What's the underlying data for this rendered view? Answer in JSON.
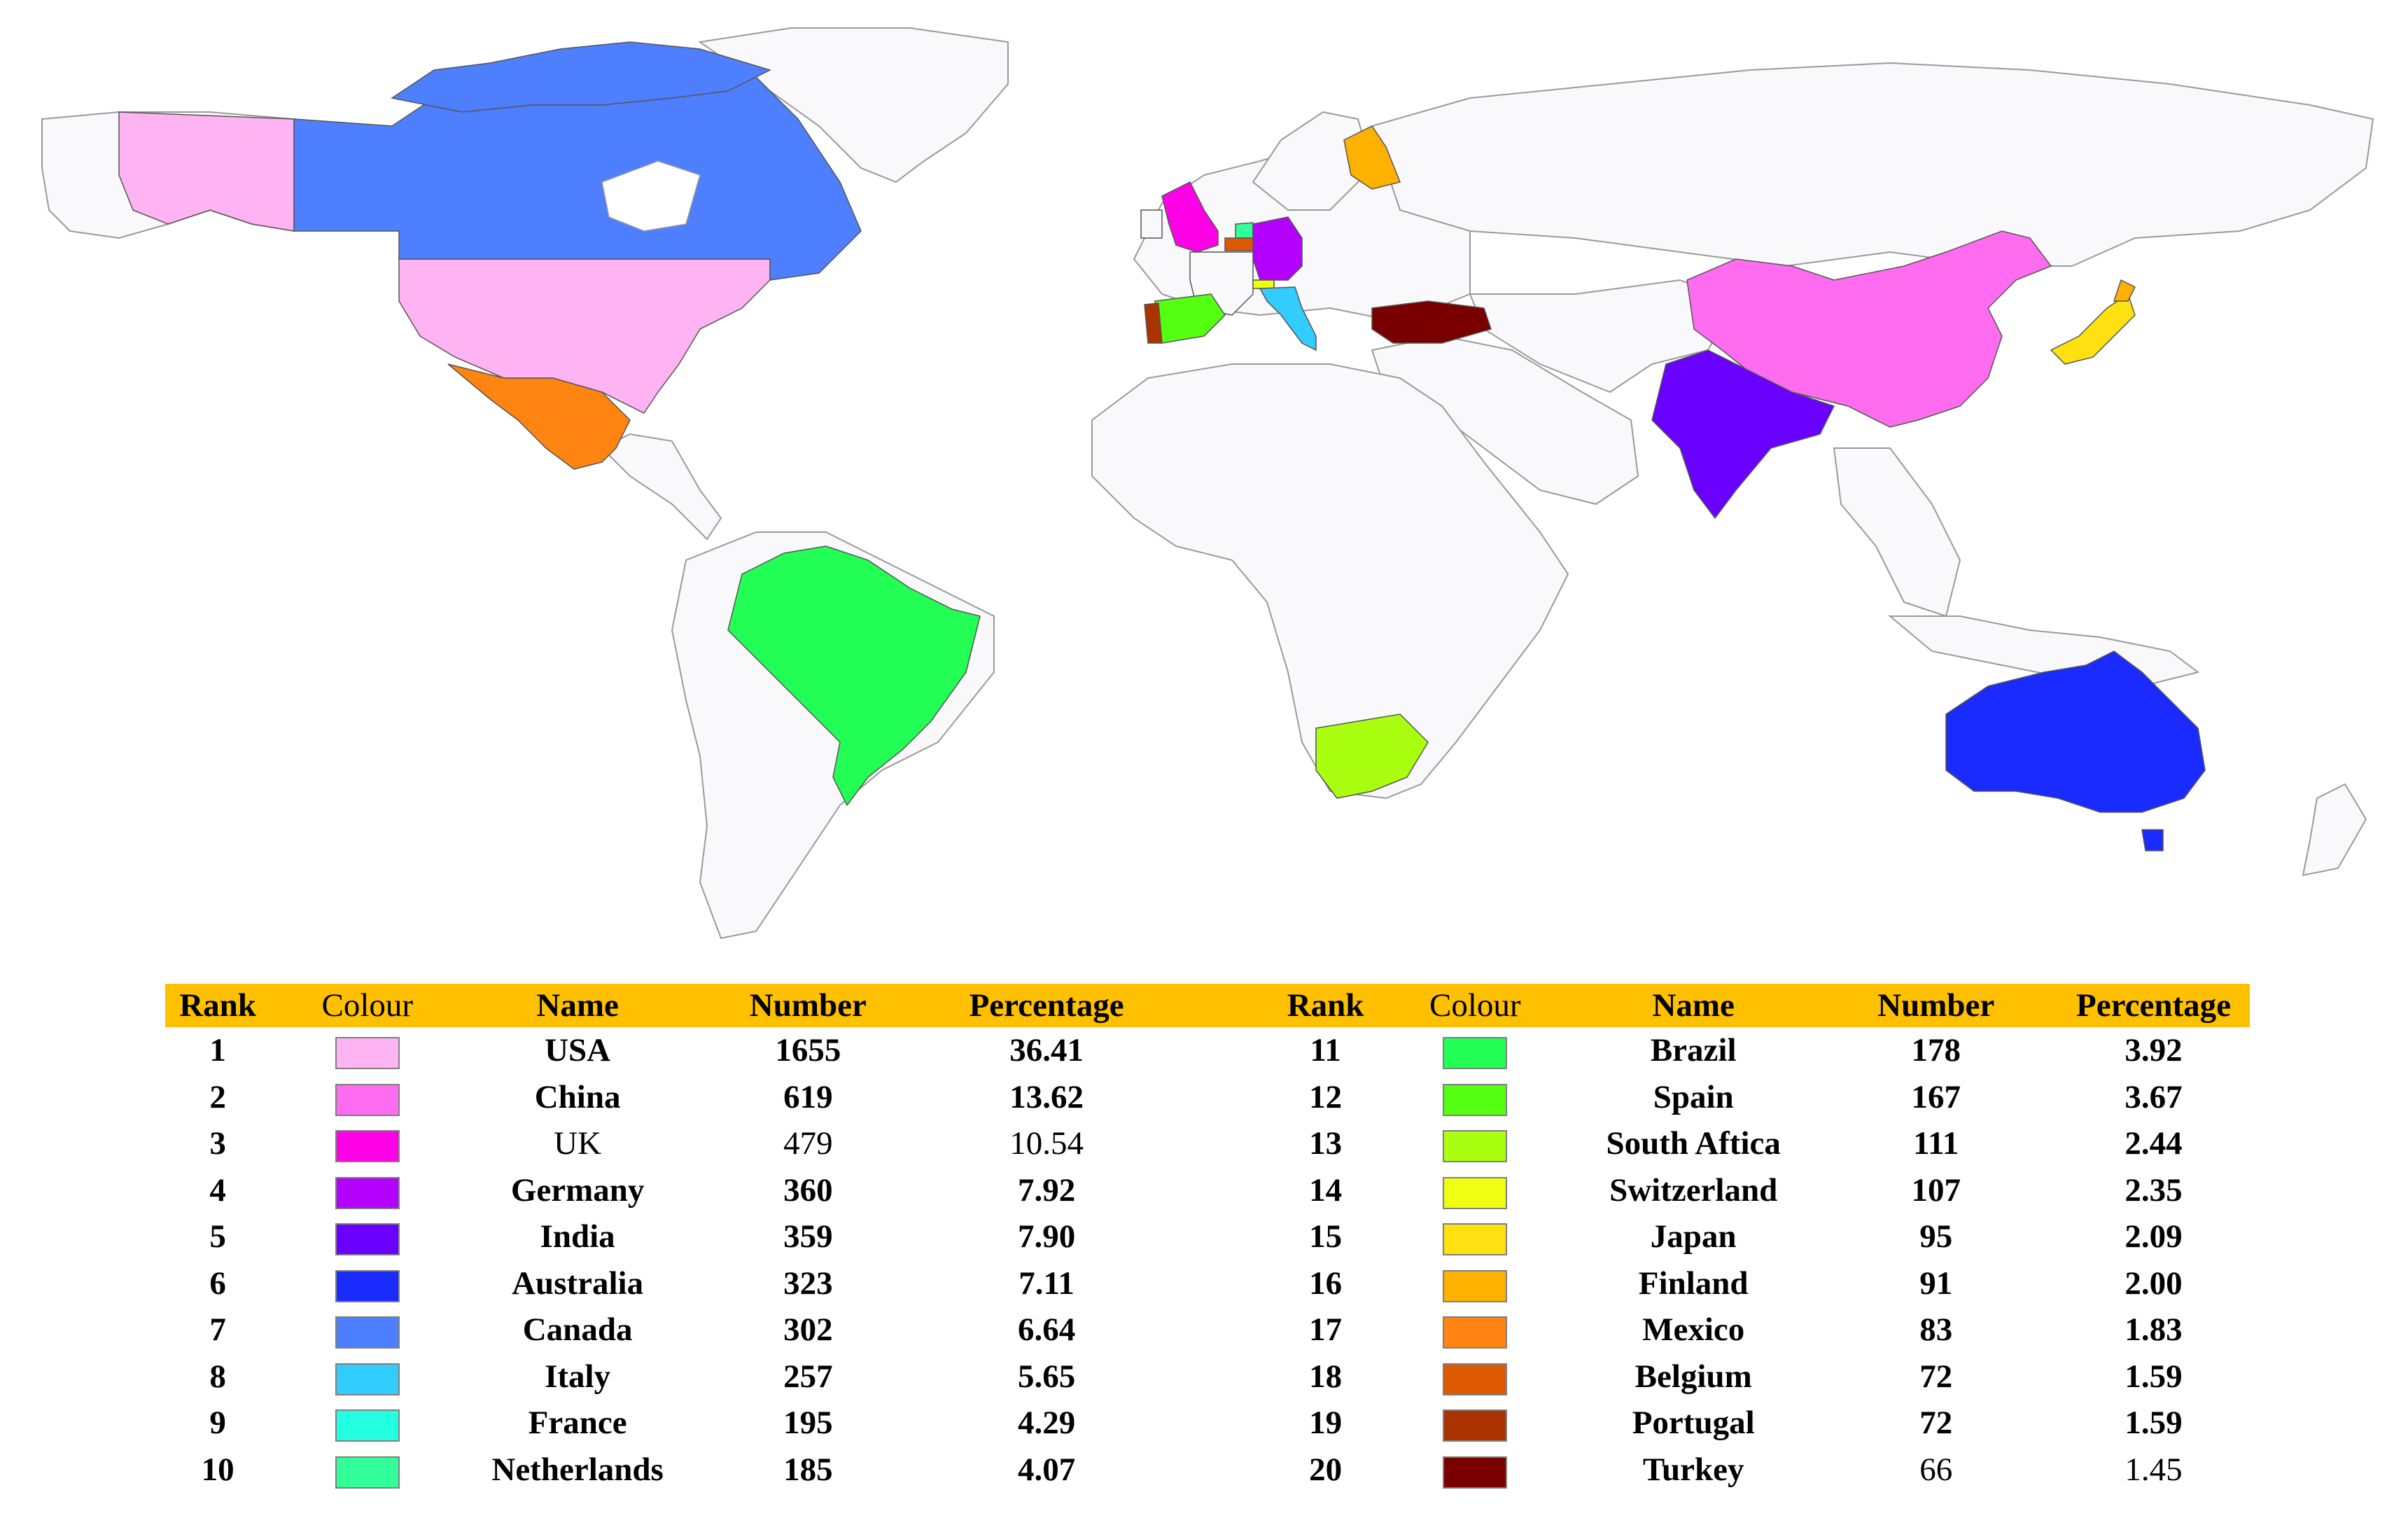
{
  "table": {
    "headers": {
      "rank": "Rank",
      "colour": "Colour",
      "name": "Name",
      "number": "Number",
      "percentage": "Percentage"
    },
    "rows": [
      {
        "rank": "1",
        "color": "#FFB3F3",
        "name": "USA",
        "number": "1655",
        "percentage": "36.41"
      },
      {
        "rank": "2",
        "color": "#FF6CF0",
        "name": "China",
        "number": "619",
        "percentage": "13.62"
      },
      {
        "rank": "3",
        "color": "#FF00E6",
        "name": "UK",
        "number": "479",
        "percentage": "10.54"
      },
      {
        "rank": "4",
        "color": "#B300FF",
        "name": "Germany",
        "number": "360",
        "percentage": "7.92"
      },
      {
        "rank": "5",
        "color": "#6A00FF",
        "name": "India",
        "number": "359",
        "percentage": "7.90"
      },
      {
        "rank": "6",
        "color": "#1A2BFF",
        "name": "Australia",
        "number": "323",
        "percentage": "7.11"
      },
      {
        "rank": "7",
        "color": "#4E7FFF",
        "name": "Canada",
        "number": "302",
        "percentage": "6.64"
      },
      {
        "rank": "8",
        "color": "#33CCFF",
        "name": "Italy",
        "number": "257",
        "percentage": "5.65"
      },
      {
        "rank": "9",
        "color": "#22FFE2",
        "name": "France",
        "number": "195",
        "percentage": "4.29"
      },
      {
        "rank": "10",
        "color": "#33FF99",
        "name": "Netherlands",
        "number": "185",
        "percentage": "4.07"
      },
      {
        "rank": "11",
        "color": "#22FF55",
        "name": "Brazil",
        "number": "178",
        "percentage": "3.92"
      },
      {
        "rank": "12",
        "color": "#55FF11",
        "name": "Spain",
        "number": "167",
        "percentage": "3.67"
      },
      {
        "rank": "13",
        "color": "#AAFF11",
        "name": "South Aftica",
        "number": "111",
        "percentage": "2.44"
      },
      {
        "rank": "14",
        "color": "#EEFF11",
        "name": "Switzerland",
        "number": "107",
        "percentage": "2.35"
      },
      {
        "rank": "15",
        "color": "#FFE011",
        "name": "Japan",
        "number": "95",
        "percentage": "2.09"
      },
      {
        "rank": "16",
        "color": "#FFB100",
        "name": "Finland",
        "number": "91",
        "percentage": "2.00"
      },
      {
        "rank": "17",
        "color": "#FF8411",
        "name": "Mexico",
        "number": "83",
        "percentage": "1.83"
      },
      {
        "rank": "18",
        "color": "#DD5A00",
        "name": "Belgium",
        "number": "72",
        "percentage": "1.59"
      },
      {
        "rank": "19",
        "color": "#AA3300",
        "name": "Portugal",
        "number": "72",
        "percentage": "1.59"
      },
      {
        "rank": "20",
        "color": "#7A0000",
        "name": "Turkey",
        "number": "66",
        "percentage": "1.45"
      }
    ]
  },
  "map": {
    "land_color": "#F9F8FA",
    "border_color": "#9A9A9A",
    "highlighted": [
      "USA",
      "China",
      "UK",
      "Germany",
      "India",
      "Australia",
      "Canada",
      "Italy",
      "France",
      "Netherlands",
      "Brazil",
      "Spain",
      "South Aftica",
      "Switzerland",
      "Japan",
      "Finland",
      "Mexico",
      "Belgium",
      "Portugal",
      "Turkey"
    ]
  }
}
